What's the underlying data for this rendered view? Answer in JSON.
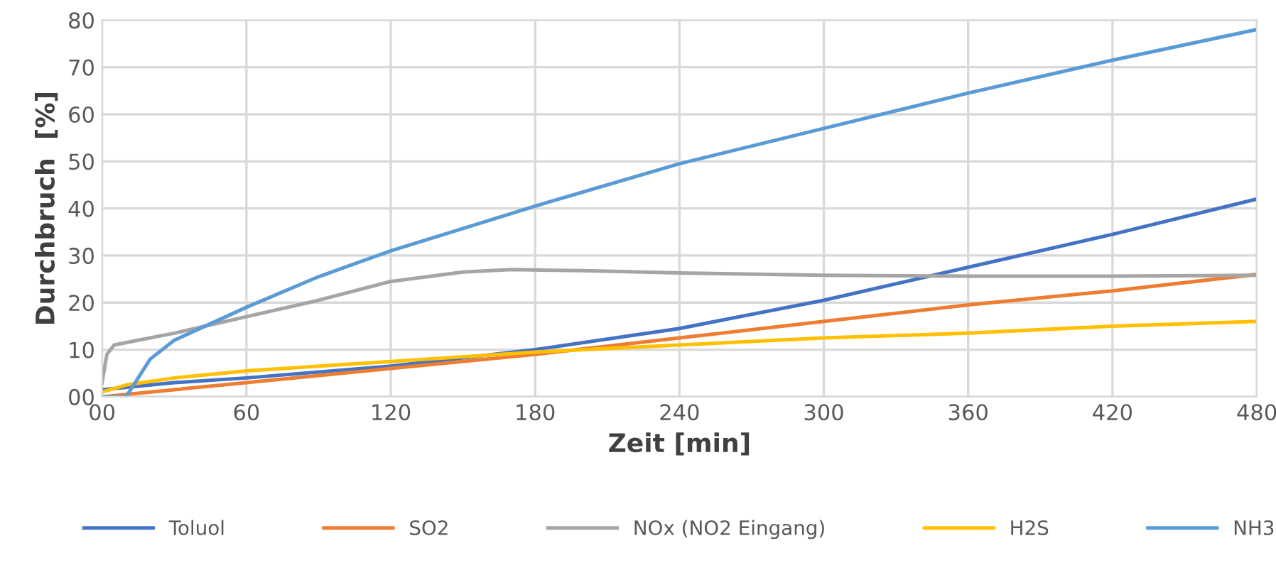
{
  "chart_data": {
    "type": "line",
    "xlabel": "Zeit [min]",
    "ylabel": "Durchbruch  [%]",
    "xlim": [
      0,
      480
    ],
    "ylim": [
      0,
      80
    ],
    "xticks": [
      {
        "value": 0,
        "label": "00"
      },
      60,
      120,
      180,
      240,
      300,
      360,
      420,
      480
    ],
    "yticks": [
      {
        "value": 0,
        "label": "00"
      },
      10,
      20,
      30,
      40,
      50,
      60,
      70,
      80
    ],
    "grid": true,
    "legend": "bottom",
    "marker": "none",
    "line_style": "solid",
    "series": [
      {
        "name": "Toluol",
        "color": "#4472c4",
        "x": [
          0,
          30,
          60,
          120,
          180,
          240,
          300,
          360,
          420,
          480
        ],
        "values": [
          1.5,
          3,
          4,
          6.5,
          10,
          14.5,
          20.5,
          27.5,
          34.5,
          42
        ]
      },
      {
        "name": "SO2",
        "color": "#ed7d31",
        "x": [
          0,
          30,
          60,
          120,
          180,
          240,
          300,
          360,
          420,
          480
        ],
        "values": [
          0,
          1.5,
          3,
          6,
          9,
          12.5,
          16,
          19.5,
          22.5,
          26
        ]
      },
      {
        "name": "NOx (NO2 Eingang)",
        "color": "#a5a5a5",
        "x": [
          0,
          2,
          5,
          15,
          30,
          60,
          90,
          120,
          150,
          170,
          200,
          240,
          300,
          360,
          420,
          480
        ],
        "values": [
          3,
          9,
          11,
          12,
          13.5,
          17,
          20.5,
          24.5,
          26.5,
          27,
          26.8,
          26.3,
          25.8,
          25.6,
          25.6,
          25.8
        ]
      },
      {
        "name": "H2S",
        "color": "#ffc000",
        "x": [
          0,
          10,
          30,
          60,
          120,
          180,
          240,
          300,
          360,
          420,
          480
        ],
        "values": [
          1,
          2.5,
          4,
          5.5,
          7.5,
          9.5,
          11,
          12.5,
          13.5,
          15,
          16
        ]
      },
      {
        "name": "NH3",
        "color": "#5b9bd5",
        "x": [
          0,
          10,
          20,
          30,
          45,
          60,
          90,
          120,
          180,
          240,
          300,
          360,
          420,
          480
        ],
        "values": [
          0,
          0,
          8,
          12,
          15.5,
          19,
          25.5,
          31,
          40.5,
          49.5,
          57,
          64.5,
          71.5,
          78
        ]
      }
    ]
  }
}
